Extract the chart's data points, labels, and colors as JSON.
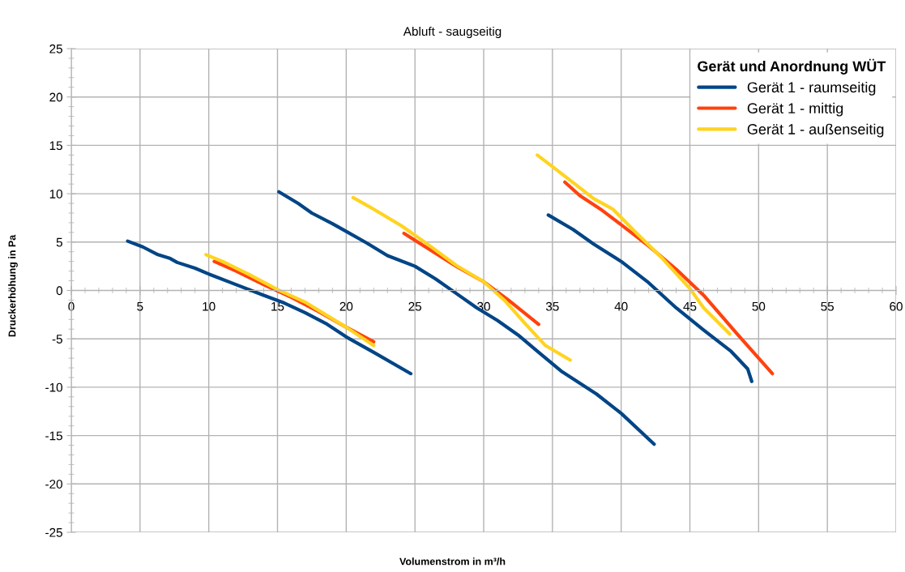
{
  "chart_data": {
    "type": "line",
    "title": "Abluft - saugseitig",
    "xlabel": "Volumenstrom in m³/h",
    "ylabel": "Druckerhöhung in Pa",
    "legend_title": "Gerät und Anordnung WÜT",
    "xlim": [
      0,
      60
    ],
    "xticks": [
      0,
      5,
      10,
      15,
      20,
      25,
      30,
      35,
      40,
      45,
      50,
      55,
      60
    ],
    "ylim": [
      -25,
      25
    ],
    "yticks": [
      -25,
      -20,
      -15,
      -10,
      -5,
      0,
      5,
      10,
      15,
      20,
      25
    ],
    "grid": true,
    "legend": "top right",
    "marker": "none",
    "line_style": "solid",
    "series": [
      {
        "name": "Gerät 1 - raumseitig",
        "color": "#004586",
        "x": [
          4.1,
          5.2,
          6.3,
          7.2,
          7.7,
          9,
          10,
          12,
          14,
          15.5,
          17,
          18.5,
          20,
          22,
          24.7,
          null,
          15.1,
          16.5,
          17.5,
          19,
          20,
          21.5,
          23,
          25,
          26.5,
          28,
          29.5,
          31,
          32.5,
          34,
          35.7,
          38.2,
          40,
          42.4,
          null,
          34.7,
          36.5,
          38,
          40,
          42,
          44,
          46,
          48,
          49.2,
          49.5
        ],
        "values": [
          5.1,
          4.5,
          3.7,
          3.3,
          2.9,
          2.3,
          1.7,
          0.6,
          -0.5,
          -1.3,
          -2.3,
          -3.4,
          -4.8,
          -6.4,
          -8.6,
          null,
          10.2,
          9,
          8,
          6.9,
          6.1,
          4.9,
          3.6,
          2.5,
          1.2,
          -0.3,
          -1.8,
          -3.1,
          -4.6,
          -6.4,
          -8.4,
          -10.7,
          -12.7,
          -15.9,
          null,
          7.8,
          6.3,
          4.8,
          3,
          0.8,
          -1.8,
          -4.1,
          -6.3,
          -8.1,
          -9.4
        ]
      },
      {
        "name": "Gerät 1 - mittig",
        "color": "#ff420e",
        "x": [
          10.4,
          12,
          14,
          16,
          18,
          20,
          22,
          null,
          24.2,
          26,
          28,
          30,
          31.8,
          34,
          null,
          35.9,
          37,
          38.5,
          40,
          42,
          44,
          46,
          48.5,
          51
        ],
        "values": [
          3,
          2,
          0.6,
          -0.7,
          -2.2,
          -3.8,
          -5.3,
          null,
          5.9,
          4.3,
          2.5,
          0.9,
          -1,
          -3.5,
          null,
          11.2,
          9.8,
          8.4,
          6.8,
          4.6,
          2.2,
          -0.5,
          -4.6,
          -8.6
        ]
      },
      {
        "name": "Gerät 1 - außenseitig",
        "color": "#ffd320",
        "x": [
          9.8,
          11,
          13,
          15,
          17,
          18.5,
          20,
          22,
          null,
          20.5,
          22,
          24,
          26,
          28,
          30,
          31.5,
          33,
          34.5,
          36.3,
          null,
          33.9,
          35,
          37,
          38,
          39.4,
          41,
          43,
          45,
          46,
          47.9
        ],
        "values": [
          3.7,
          3,
          1.6,
          0.1,
          -1.2,
          -2.5,
          -3.8,
          -5.7,
          null,
          9.6,
          8.4,
          6.7,
          4.7,
          2.6,
          0.9,
          -1,
          -3.4,
          -5.7,
          -7.2,
          null,
          14,
          12.8,
          10.6,
          9.5,
          8.4,
          6.1,
          3.3,
          0.2,
          -1.8,
          -4.5
        ]
      }
    ]
  }
}
